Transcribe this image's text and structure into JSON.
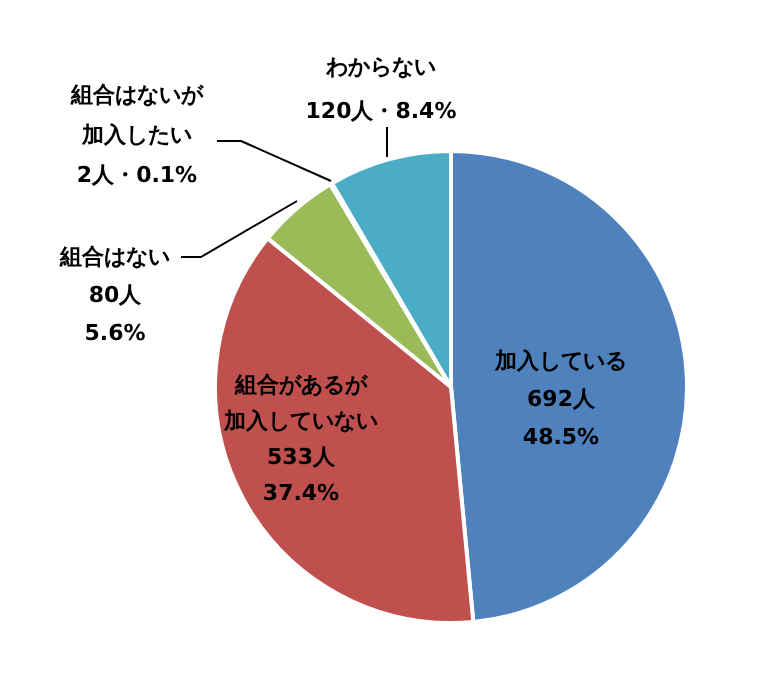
{
  "chart_data": {
    "type": "pie",
    "categories": [
      "加入している",
      "組合があるが加入していない",
      "組合はない",
      "組合はないが加入したい",
      "わからない"
    ],
    "values": [
      692,
      533,
      80,
      2,
      120
    ],
    "colors": [
      "#4f81bd",
      "#c0504d",
      "#9bbb59",
      "#8064a2",
      "#4bacc6"
    ],
    "value_labels": [
      "692人 48.5%",
      "533人 37.4%",
      "80人 5.6%",
      "2人・0.1%",
      "120人・8.4%"
    ]
  }
}
